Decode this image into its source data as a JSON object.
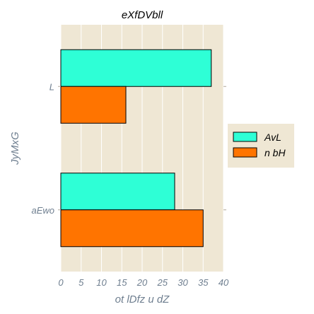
{
  "chart_data": {
    "type": "bar",
    "orientation": "horizontal",
    "title": "eXfDVbll",
    "xlabel": "ot lDfz u dZ",
    "ylabel": "JyMxG",
    "categories": [
      "L",
      "aEwo"
    ],
    "series": [
      {
        "name": "AvL",
        "values": [
          37,
          28
        ],
        "color": "#2effd6"
      },
      {
        "name": "n bH",
        "values": [
          16,
          35
        ],
        "color": "#ff7400"
      }
    ],
    "xlim": [
      0,
      40
    ],
    "xticks": [
      0,
      5,
      10,
      15,
      20,
      25,
      30,
      35,
      40
    ],
    "grid": true,
    "legend_position": "right",
    "background": "#efe7d4"
  }
}
